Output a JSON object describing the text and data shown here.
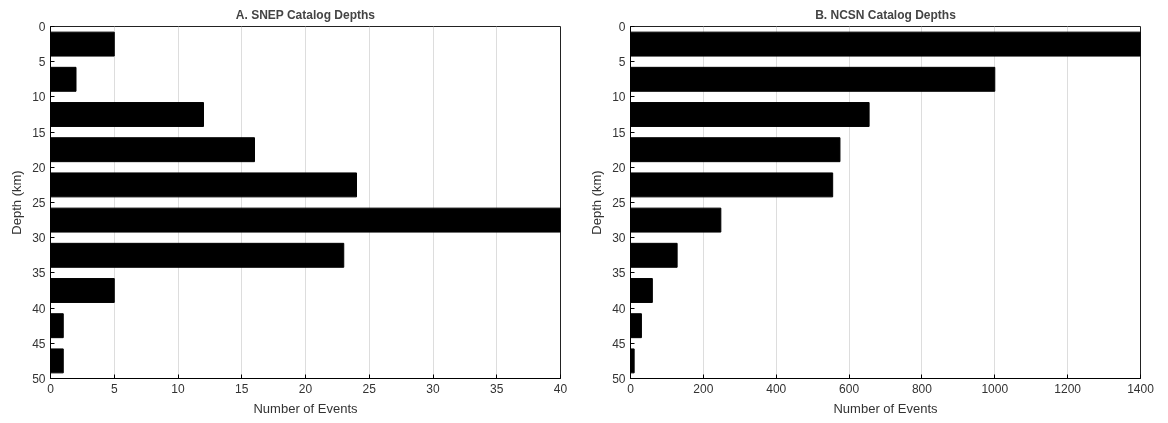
{
  "chart_data": [
    {
      "type": "histogram",
      "orientation": "horizontal",
      "title": "A. SNEP Catalog Depths",
      "xlabel": "Number of Events",
      "ylabel": "Depth (km)",
      "color": "#000000",
      "bins": [
        0,
        5,
        10,
        15,
        20,
        25,
        30,
        35,
        40,
        45,
        50
      ],
      "values": [
        5,
        2,
        12,
        16,
        24,
        40,
        23,
        5,
        1,
        1
      ],
      "xlim": [
        0,
        40
      ],
      "xticks": [
        0,
        5,
        10,
        15,
        20,
        25,
        30,
        35,
        40
      ],
      "ylim": [
        50,
        0
      ],
      "yticks": [
        0,
        5,
        10,
        15,
        20,
        25,
        30,
        35,
        40,
        45,
        50
      ],
      "grid": "x"
    },
    {
      "type": "histogram",
      "orientation": "horizontal",
      "title": "B. NCSN Catalog Depths",
      "xlabel": "Number of Events",
      "ylabel": "Depth (km)",
      "color": "#000000",
      "bins": [
        0,
        5,
        10,
        15,
        20,
        25,
        30,
        35,
        40,
        45,
        50
      ],
      "values": [
        1400,
        1000,
        655,
        575,
        555,
        248,
        128,
        60,
        30,
        10
      ],
      "xlim": [
        0,
        1400
      ],
      "xticks": [
        0,
        200,
        400,
        600,
        800,
        1000,
        1200,
        1400
      ],
      "ylim": [
        50,
        0
      ],
      "yticks": [
        0,
        5,
        10,
        15,
        20,
        25,
        30,
        35,
        40,
        45,
        50
      ],
      "grid": "x"
    }
  ]
}
